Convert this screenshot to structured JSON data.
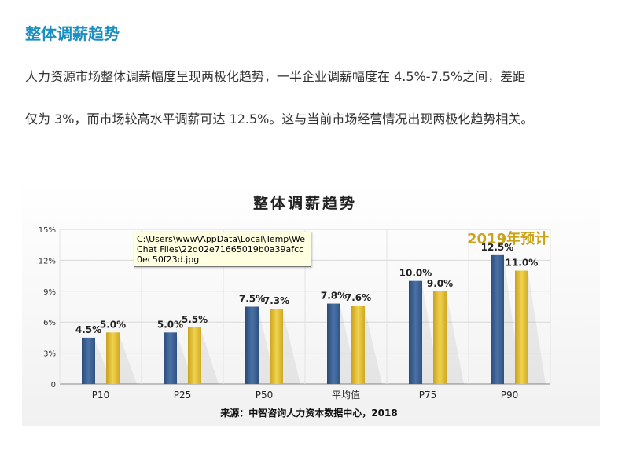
{
  "article": {
    "heading": "整体调薪趋势",
    "para_line1": "人力资源市场整体调薪幅度呈现两极化趋势，一半企业调薪幅度在 4.5%-7.5%之间，差距",
    "para_line2": "仅为 3%，而市场较高水平调薪可达 12.5%。这与当前市场经营情况出现两极化趋势相关。"
  },
  "tooltip": {
    "text": "C:\\Users\\www\\AppData\\Local\\Temp\\WeChat Files\\22d02e71665019b0a39afcc0ec50f23d.jpg"
  },
  "chart_data": {
    "type": "bar",
    "title": "整体调薪趋势",
    "legend_label": "2019年预计",
    "source": "来源：中智咨询人力资本数据中心，2018",
    "categories": [
      "P10",
      "P25",
      "P50",
      "平均值",
      "P75",
      "P90"
    ],
    "series": [
      {
        "color": "#3a5f94",
        "values": [
          4.5,
          5.0,
          7.5,
          7.8,
          10.0,
          12.5
        ],
        "labels": [
          "4.5%",
          "5.0%",
          "7.5%",
          "7.8%",
          "10.0%",
          "12.5%"
        ]
      },
      {
        "name": "2019年预计",
        "color": "#e3c23a",
        "values": [
          5.0,
          5.5,
          7.3,
          7.6,
          9.0,
          11.0
        ],
        "labels": [
          "5.0%",
          "5.5%",
          "7.3%",
          "7.6%",
          "9.0%",
          "11.0%"
        ]
      }
    ],
    "ylim": [
      0,
      15
    ],
    "yticks": [
      0,
      3,
      6,
      9,
      12,
      15
    ],
    "ytick_labels": [
      "0",
      "3%",
      "6%",
      "9%",
      "12%",
      "15%"
    ],
    "grid": true,
    "legend_color": "#c9a319"
  }
}
